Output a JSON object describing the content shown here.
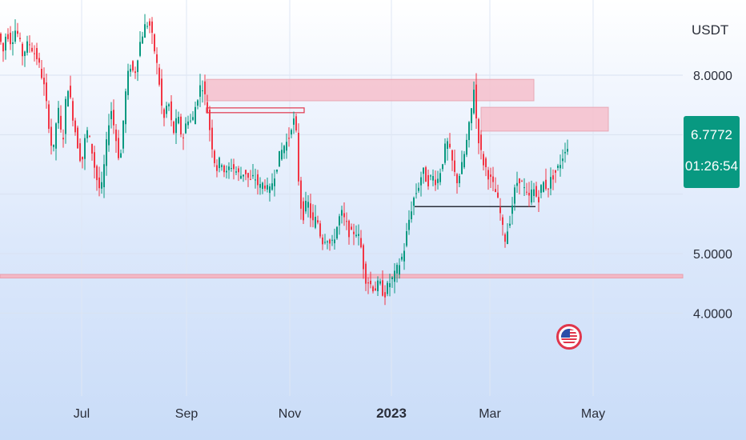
{
  "app": {
    "currency": "USDT"
  },
  "price_badge": {
    "price": "6.7772",
    "countdown": "01:26:54",
    "color": "#089981"
  },
  "colors": {
    "up": "#089981",
    "down": "#f23645",
    "zone": "#f6c3cf",
    "zone_border": "#e8a0ae",
    "line": "#2a2e39"
  },
  "logo": {
    "icon": "us-flag-icon"
  },
  "chart_data": {
    "type": "candlestick",
    "currency": "USDT",
    "x_axis_labels": [
      "Jul",
      "Sep",
      "Nov",
      "2023",
      "Mar",
      "May"
    ],
    "y_axis_labels": [
      "8.0000",
      "5.0000",
      "4.0000"
    ],
    "ylim": [
      3.3,
      8.9
    ],
    "grid": true,
    "current_price": 6.7772,
    "countdown": "01:26:54",
    "price_path": [
      [
        0,
        8.7
      ],
      [
        6,
        8.4
      ],
      [
        10,
        8.75
      ],
      [
        16,
        8.55
      ],
      [
        22,
        8.8
      ],
      [
        30,
        8.35
      ],
      [
        38,
        8.55
      ],
      [
        48,
        8.3
      ],
      [
        56,
        7.9
      ],
      [
        62,
        7.3
      ],
      [
        68,
        6.6
      ],
      [
        74,
        7.5
      ],
      [
        80,
        6.8
      ],
      [
        86,
        7.9
      ],
      [
        92,
        7.4
      ],
      [
        98,
        6.9
      ],
      [
        104,
        6.5
      ],
      [
        110,
        7.1
      ],
      [
        116,
        6.8
      ],
      [
        122,
        6.3
      ],
      [
        128,
        6.0
      ],
      [
        134,
        6.7
      ],
      [
        140,
        7.5
      ],
      [
        146,
        7.0
      ],
      [
        152,
        6.5
      ],
      [
        158,
        7.6
      ],
      [
        164,
        8.2
      ],
      [
        170,
        8.0
      ],
      [
        176,
        8.5
      ],
      [
        182,
        8.8
      ],
      [
        188,
        8.9
      ],
      [
        194,
        8.5
      ],
      [
        200,
        8.0
      ],
      [
        206,
        7.2
      ],
      [
        212,
        7.6
      ],
      [
        218,
        7.0
      ],
      [
        224,
        7.3
      ],
      [
        230,
        6.9
      ],
      [
        236,
        7.3
      ],
      [
        242,
        7.2
      ],
      [
        248,
        7.6
      ],
      [
        254,
        7.9
      ],
      [
        260,
        7.5
      ],
      [
        266,
        6.9
      ],
      [
        272,
        6.4
      ],
      [
        278,
        6.6
      ],
      [
        284,
        6.3
      ],
      [
        290,
        6.5
      ],
      [
        296,
        6.4
      ],
      [
        302,
        6.3
      ],
      [
        308,
        6.4
      ],
      [
        314,
        6.2
      ],
      [
        320,
        6.3
      ],
      [
        326,
        6.1
      ],
      [
        332,
        6.2
      ],
      [
        338,
        6.0
      ],
      [
        344,
        6.3
      ],
      [
        350,
        6.6
      ],
      [
        356,
        6.8
      ],
      [
        362,
        6.9
      ],
      [
        368,
        7.3
      ],
      [
        372,
        7.0
      ],
      [
        376,
        6.0
      ],
      [
        380,
        5.6
      ],
      [
        386,
        5.9
      ],
      [
        392,
        5.5
      ],
      [
        398,
        5.6
      ],
      [
        404,
        5.2
      ],
      [
        410,
        5.3
      ],
      [
        416,
        5.1
      ],
      [
        422,
        5.4
      ],
      [
        428,
        5.7
      ],
      [
        434,
        5.5
      ],
      [
        440,
        5.3
      ],
      [
        446,
        5.4
      ],
      [
        452,
        5.2
      ],
      [
        458,
        4.6
      ],
      [
        464,
        4.5
      ],
      [
        470,
        4.4
      ],
      [
        476,
        4.5
      ],
      [
        482,
        4.3
      ],
      [
        488,
        4.5
      ],
      [
        494,
        4.6
      ],
      [
        500,
        4.8
      ],
      [
        506,
        5.0
      ],
      [
        512,
        5.5
      ],
      [
        518,
        5.9
      ],
      [
        524,
        6.1
      ],
      [
        530,
        6.4
      ],
      [
        536,
        6.2
      ],
      [
        542,
        6.3
      ],
      [
        548,
        6.2
      ],
      [
        554,
        6.5
      ],
      [
        560,
        6.9
      ],
      [
        566,
        6.6
      ],
      [
        572,
        6.2
      ],
      [
        578,
        6.4
      ],
      [
        584,
        6.8
      ],
      [
        590,
        7.3
      ],
      [
        594,
        7.8
      ],
      [
        598,
        7.1
      ],
      [
        604,
        6.6
      ],
      [
        610,
        6.4
      ],
      [
        616,
        6.2
      ],
      [
        622,
        6.0
      ],
      [
        628,
        5.6
      ],
      [
        632,
        5.2
      ],
      [
        638,
        5.5
      ],
      [
        644,
        6.0
      ],
      [
        650,
        6.3
      ],
      [
        656,
        6.1
      ],
      [
        662,
        5.9
      ],
      [
        668,
        6.1
      ],
      [
        674,
        5.9
      ],
      [
        680,
        6.2
      ],
      [
        686,
        6.1
      ],
      [
        692,
        6.3
      ],
      [
        698,
        6.4
      ],
      [
        704,
        6.6
      ],
      [
        708,
        6.78
      ]
    ],
    "resistance_zones": [
      {
        "x0": 258,
        "x1": 667,
        "y_top": 7.93,
        "y_bottom": 7.57
      },
      {
        "x0": 601,
        "x1": 760,
        "y_top": 7.46,
        "y_bottom": 7.06
      },
      {
        "x0": 258,
        "x1": 380,
        "y_top": 7.45,
        "y_bottom": 7.37
      }
    ],
    "support_line": {
      "x0": 518,
      "x1": 669,
      "y": 5.79
    },
    "support_zone": {
      "x0": 0,
      "x1": 853,
      "y_top": 4.65,
      "y_bottom": 4.59
    }
  }
}
